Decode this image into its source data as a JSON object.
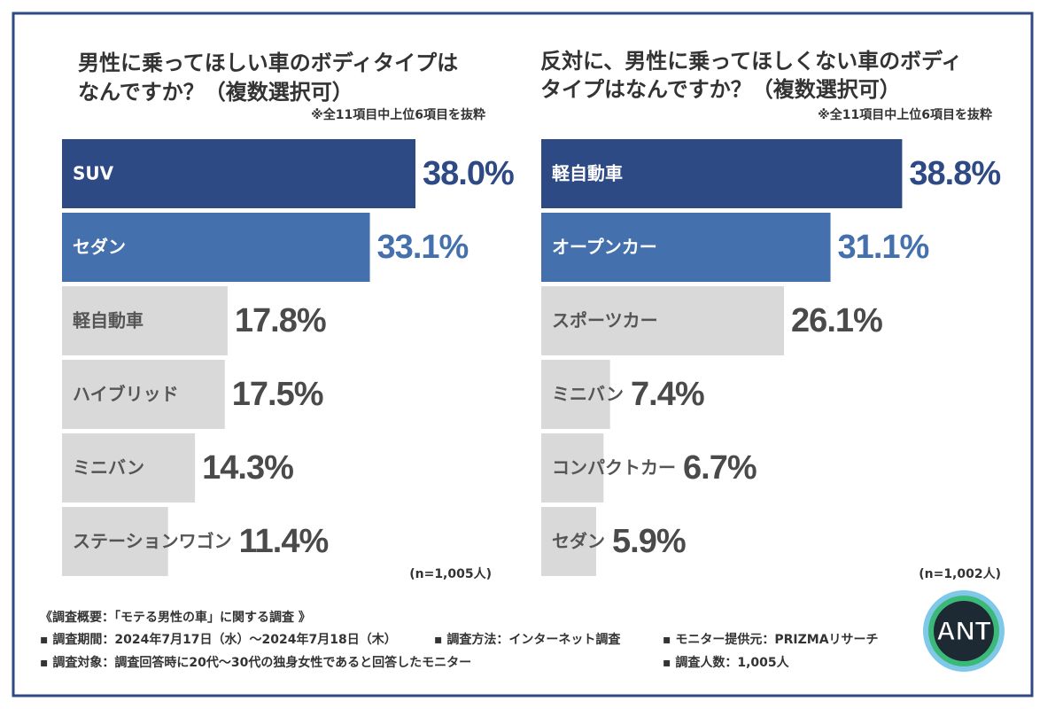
{
  "chart_data": [
    {
      "type": "bar",
      "orientation": "horizontal",
      "title": [
        "男性に乗ってほしい車のボディタイプは",
        "なんですか？（複数選択可）"
      ],
      "note": "※全11項目中上位6項目を抜粋",
      "categories": [
        "SUV",
        "セダン",
        "軽自動車",
        "ハイブリッド",
        "ミニバン",
        "ステーションワゴン"
      ],
      "values": [
        38.0,
        33.1,
        17.8,
        17.5,
        14.3,
        11.4
      ],
      "value_labels": [
        "38.0%",
        "33.1%",
        "17.8%",
        "17.5%",
        "14.3%",
        "11.4%"
      ],
      "colors": [
        "#2e4a84",
        "#4471ad",
        "#d9d9d9",
        "#d9d9d9",
        "#d9d9d9",
        "#d9d9d9"
      ],
      "sample": "(n=1,005人)"
    },
    {
      "type": "bar",
      "orientation": "horizontal",
      "title": [
        "反対に、男性に乗ってほしくない車のボディ",
        "タイプはなんですか？（複数選択可）"
      ],
      "note": "※全11項目中上位6項目を抜粋",
      "categories": [
        "軽自動車",
        "オープンカー",
        "スポーツカー",
        "ミニバン",
        "コンパクトカー",
        "セダン"
      ],
      "values": [
        38.8,
        31.1,
        26.1,
        7.4,
        6.7,
        5.9
      ],
      "value_labels": [
        "38.8%",
        "31.1%",
        "26.1%",
        "7.4%",
        "6.7%",
        "5.9%"
      ],
      "colors": [
        "#2e4a84",
        "#4471ad",
        "#d9d9d9",
        "#d9d9d9",
        "#d9d9d9",
        "#d9d9d9"
      ],
      "sample": "(n=1,002人)"
    }
  ],
  "footer": {
    "heading": "《調査概要：「モテる男性の車」に関する調査 》",
    "period": "▪ 調査期間：2024年7月17日（水）〜2024年7月18日（木）",
    "method": "▪ 調査方法：インターネット調査",
    "provider": "▪ モニター提供元：PRIZMAリサーチ",
    "target": "▪ 調査対象：調査回答時に20代〜30代の独身女性であると回答したモニター",
    "count": "▪ 調査人数：1,005人"
  },
  "logo": "ANT"
}
